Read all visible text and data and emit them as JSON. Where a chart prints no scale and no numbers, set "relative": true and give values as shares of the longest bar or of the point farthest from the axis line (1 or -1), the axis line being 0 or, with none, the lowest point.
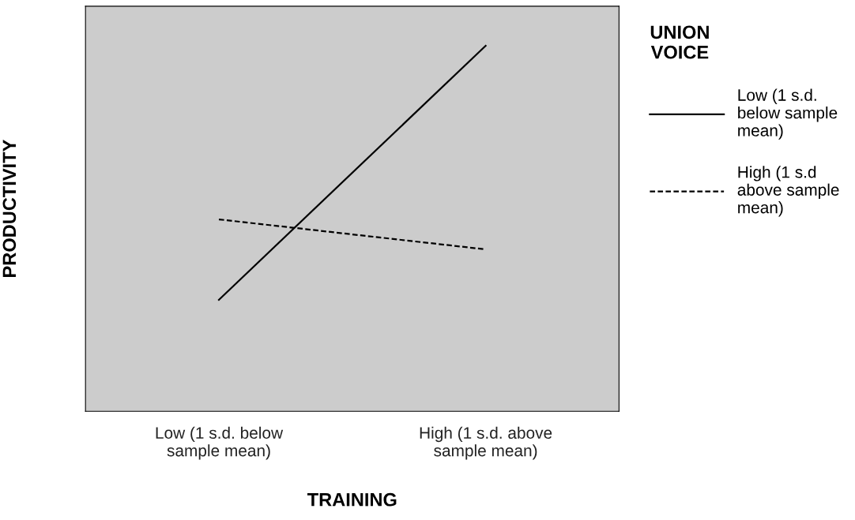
{
  "chart_data": {
    "type": "line",
    "relative": true,
    "xlabel": "TRAINING",
    "ylabel": "PRODUCTIVITY",
    "legend_title": "UNION\nVOICE",
    "legend": "right",
    "categories": [
      "Low (1 s.d. below\nsample mean)",
      "High (1 s.d. above\nsample mean)"
    ],
    "series": [
      {
        "name": "Low (1 s.d.\nbelow sample\nmean)",
        "color": "#000000",
        "line_style": "solid",
        "values": [
          0.305,
          1
        ]
      },
      {
        "name": "High (1 s.d\nabove sample\nmean)",
        "color": "#000000",
        "line_style": "dashed",
        "values": [
          0.525,
          0.443
        ]
      }
    ],
    "marker": "none",
    "grid": false
  }
}
